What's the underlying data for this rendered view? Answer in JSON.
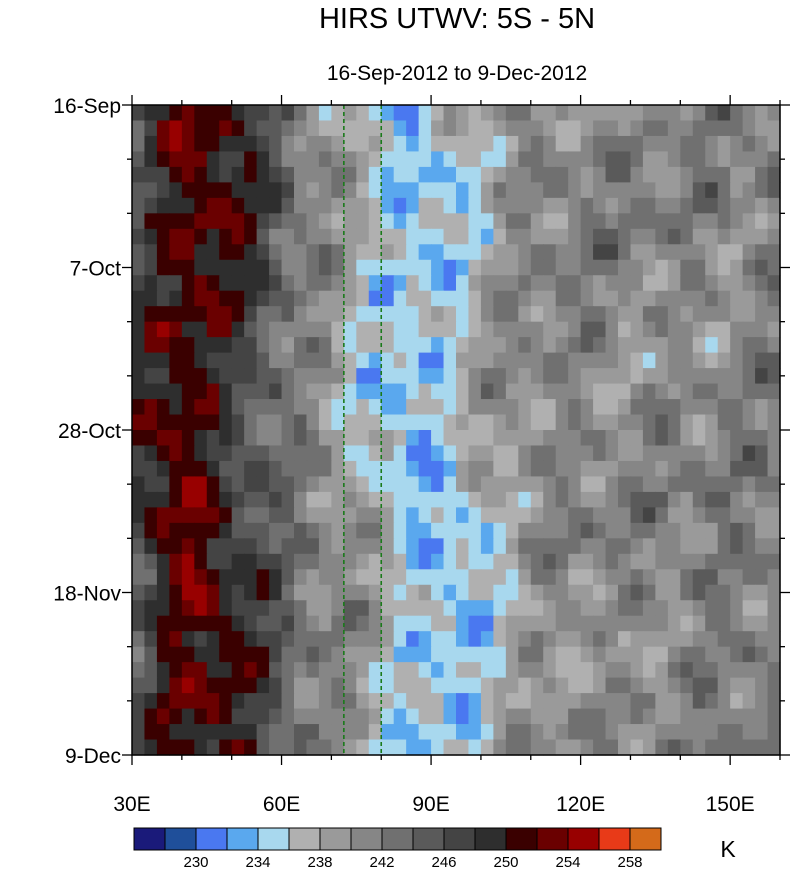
{
  "chart_data": {
    "type": "heatmap",
    "title": "HIRS UTWV: 5S - 5N",
    "subtitle": "16-Sep-2012 to 9-Dec-2012",
    "x_axis": {
      "range": [
        30,
        160
      ],
      "tick_labels": [
        "30E",
        "60E",
        "90E",
        "120E",
        "150E"
      ],
      "tick_values": [
        30,
        60,
        90,
        120,
        150
      ]
    },
    "y_axis": {
      "range": [
        "16-Sep",
        "9-Dec"
      ],
      "tick_labels": [
        "16-Sep",
        "7-Oct",
        "28-Oct",
        "18-Nov",
        "9-Dec"
      ],
      "tick_days": [
        0,
        21,
        42,
        63,
        84
      ],
      "direction": "time increases downward"
    },
    "reference_lines": [
      {
        "longitude": 72.5,
        "style": "dashed",
        "color": "#1a7a1a"
      },
      {
        "longitude": 80,
        "style": "dashed",
        "color": "#1a7a1a"
      }
    ],
    "colorbar": {
      "unit": "K",
      "levels": [
        228,
        230,
        232,
        234,
        236,
        238,
        240,
        242,
        244,
        246,
        248,
        250,
        252,
        254,
        256,
        258,
        260
      ],
      "labels": [
        "230",
        "234",
        "238",
        "242",
        "246",
        "250",
        "254",
        "258"
      ],
      "colors": [
        "#1a1a7a",
        "#1f4f9a",
        "#4a78f0",
        "#5aa8ee",
        "#a8d8ee",
        "#b0b0b0",
        "#9a9a9a",
        "#868686",
        "#707070",
        "#5a5a5a",
        "#444444",
        "#2e2e2e",
        "#3a0000",
        "#6a0000",
        "#980000",
        "#e83a18",
        "#d46a1a"
      ]
    },
    "pattern_summary": "warm dry band (252-258 K) near 30-55E all period; moist blue band (232-236 K) around 85-105E propagating eastward; mixed 238-246 K east of 110E"
  }
}
